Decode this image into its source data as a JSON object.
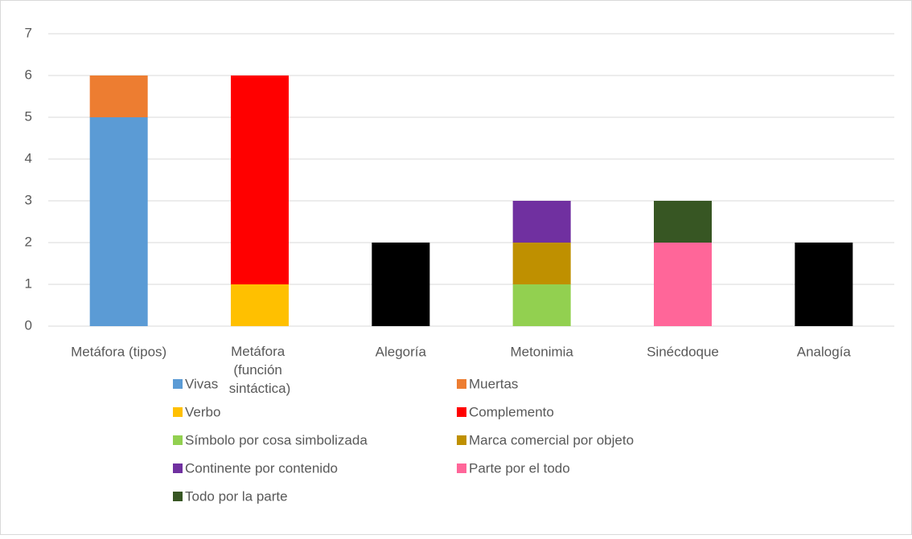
{
  "chart_data": {
    "type": "stacked_bar",
    "categories": [
      "Metáfora (tipos)",
      "Metáfora (función sintáctica)",
      "Alegoría",
      "Metonimia",
      "Sinécdoque",
      "Analogía"
    ],
    "series": [
      {
        "name": "Vivas",
        "color": "#5b9bd5",
        "values": [
          5,
          null,
          null,
          null,
          null,
          null
        ]
      },
      {
        "name": "Muertas",
        "color": "#ed7d31",
        "values": [
          1,
          null,
          null,
          null,
          null,
          null
        ]
      },
      {
        "name": "Verbo",
        "color": "#ffc000",
        "values": [
          null,
          1,
          null,
          null,
          null,
          null
        ]
      },
      {
        "name": "Complemento",
        "color": "#ff0000",
        "values": [
          null,
          5,
          null,
          null,
          null,
          null
        ]
      },
      {
        "name": "Símbolo por cosa simbolizada",
        "color": "#92d050",
        "values": [
          null,
          null,
          null,
          1,
          null,
          null
        ]
      },
      {
        "name": "Marca comercial por objeto",
        "color": "#bf9000",
        "values": [
          null,
          null,
          null,
          1,
          null,
          null
        ]
      },
      {
        "name": "Continente por contenido",
        "color": "#7030a0",
        "values": [
          null,
          null,
          null,
          1,
          null,
          null
        ]
      },
      {
        "name": "Parte por el todo",
        "color": "#ff6699",
        "values": [
          null,
          null,
          null,
          null,
          2,
          null
        ]
      },
      {
        "name": "Todo por la parte",
        "color": "#375623",
        "values": [
          null,
          null,
          null,
          null,
          1,
          null
        ]
      },
      {
        "color": "#000000",
        "values": [
          null,
          null,
          2,
          null,
          null,
          2
        ]
      }
    ],
    "ylim": [
      0,
      7
    ],
    "yticks": [
      0,
      1,
      2,
      3,
      4,
      5,
      6,
      7
    ],
    "grid": true,
    "legend": "bottom"
  }
}
